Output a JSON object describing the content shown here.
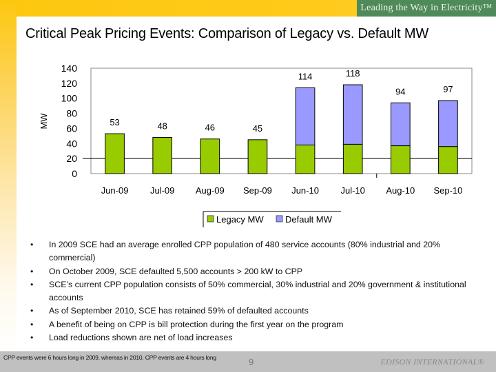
{
  "header": {
    "tagline": "Leading the Way in Electricity™",
    "title": "Critical Peak Pricing Events: Comparison of Legacy vs. Default MW"
  },
  "colors": {
    "legacy": "#99cc00",
    "default": "#9999ff",
    "banner": "#4f8a5a",
    "accent_yellow": "#fdc70f"
  },
  "chart_data": {
    "type": "bar",
    "stacked": true,
    "title": "",
    "xlabel": "",
    "ylabel": "MW",
    "ylim": [
      0,
      140
    ],
    "yticks": [
      0,
      20,
      40,
      60,
      80,
      100,
      120,
      140
    ],
    "grid": false,
    "reference_line": 20,
    "legend_position": "bottom",
    "categories": [
      "Jun-09",
      "Jul-09",
      "Aug-09",
      "Sep-09",
      "Jun-10",
      "Jul-10",
      "Aug-10",
      "Sep-10"
    ],
    "series": [
      {
        "name": "Legacy MW",
        "color": "#99cc00",
        "values": [
          53,
          48,
          46,
          45,
          38,
          39,
          37,
          36
        ]
      },
      {
        "name": "Default MW",
        "color": "#9999ff",
        "values": [
          0,
          0,
          0,
          0,
          76,
          79,
          57,
          61
        ]
      }
    ],
    "totals": [
      53,
      48,
      46,
      45,
      114,
      118,
      94,
      97
    ],
    "total_labels": [
      "53",
      "48",
      "46",
      "45",
      "114",
      "118",
      "94",
      "97"
    ]
  },
  "bullets": [
    "In 2009 SCE had an average enrolled CPP population of 480 service accounts (80% industrial and 20% commercial)",
    "On October 2009, SCE defaulted 5,500 accounts > 200 kW to CPP",
    "SCE’s current CPP population consists of 50% commercial, 30% industrial and 20% government & institutional accounts",
    "As of September 2010, SCE has retained 59% of defaulted accounts",
    "A benefit of being on CPP is bill protection during the first year on the program",
    "Load reductions shown are net of load increases"
  ],
  "bullet_glyph": "•",
  "footer": {
    "note": "CPP events were 6 hours long in 2009, whereas in 2010, CPP events are 4 hours long",
    "page_number": "9",
    "brand": "EDISON INTERNATIONAL®"
  }
}
